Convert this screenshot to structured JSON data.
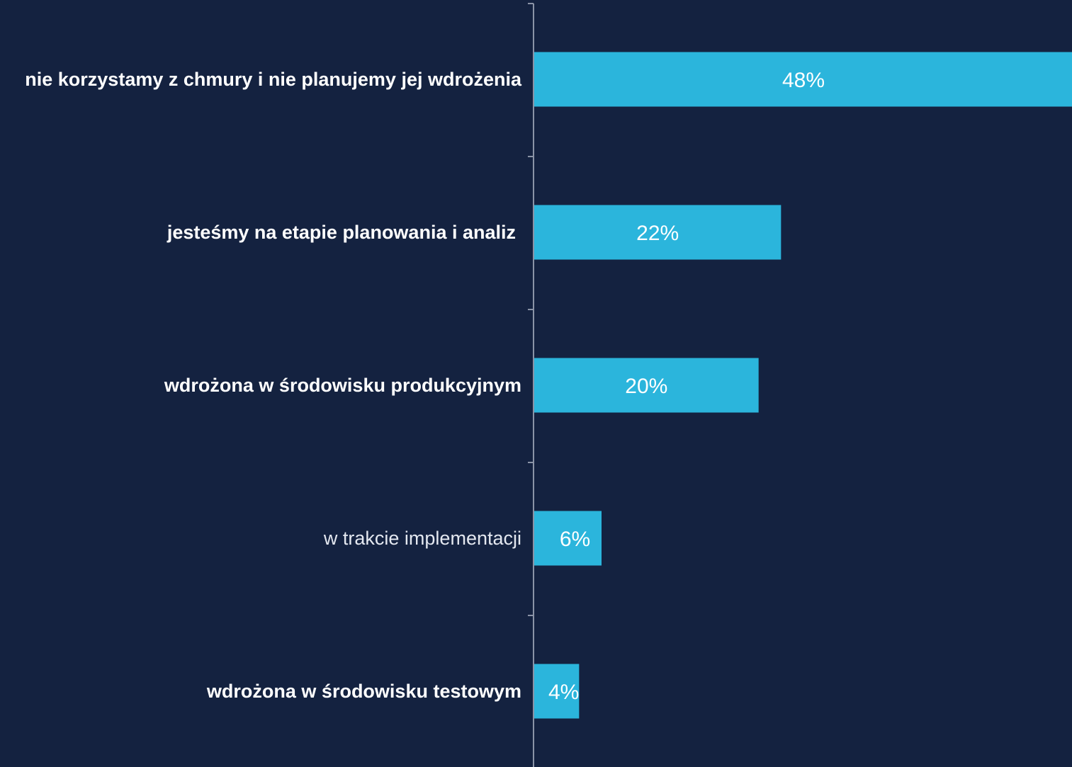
{
  "chart_data": {
    "type": "bar",
    "orientation": "horizontal",
    "categories": [
      "nie korzystamy z chmury i nie planujemy jej wdrożenia",
      "jesteśmy na etapie planowania i analiz",
      "wdrożona w środowisku produkcyjnym",
      "w trakcie implementacji",
      "wdrożona w środowisku testowym"
    ],
    "values": [
      48,
      22,
      20,
      6,
      4
    ],
    "value_labels": [
      "48%",
      "22%",
      "20%",
      "6%",
      "4%"
    ],
    "label_weights": [
      "bold",
      "bold",
      "bold",
      "light",
      "bold"
    ],
    "unit": "%",
    "xlim": [
      0,
      48
    ],
    "colors": {
      "background": "#142240",
      "bar": "#2bb5dc",
      "axis": "#8a93a6",
      "text": "#ffffff"
    }
  }
}
